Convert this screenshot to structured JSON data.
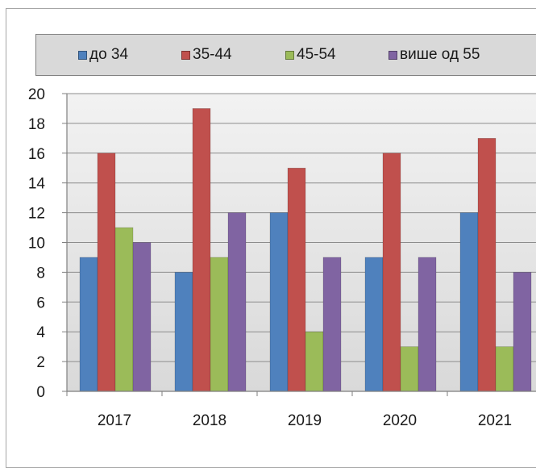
{
  "chart_data": {
    "type": "bar",
    "title": "",
    "xlabel": "",
    "ylabel": "",
    "categories": [
      "2017",
      "2018",
      "2019",
      "2020",
      "2021"
    ],
    "series": [
      {
        "name": "до 34",
        "color": "#4f81bd",
        "values": [
          9,
          8,
          12,
          9,
          12
        ]
      },
      {
        "name": "35-44",
        "color": "#c0504d",
        "values": [
          16,
          19,
          15,
          16,
          17
        ]
      },
      {
        "name": "45-54",
        "color": "#9bbb59",
        "values": [
          11,
          9,
          4,
          3,
          3
        ]
      },
      {
        "name": "више од 55",
        "color": "#8064a2",
        "values": [
          10,
          12,
          9,
          9,
          8
        ]
      }
    ],
    "ylim": [
      0,
      20
    ],
    "yticks": [
      "0",
      "2",
      "4",
      "6",
      "8",
      "10",
      "12",
      "14",
      "16",
      "18",
      "20"
    ],
    "grid": true,
    "legend_position": "top"
  }
}
